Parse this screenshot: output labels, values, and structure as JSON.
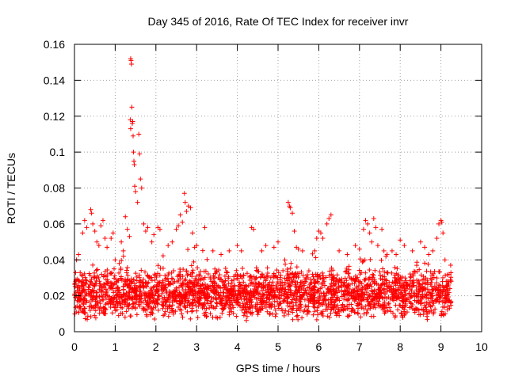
{
  "chart_data": {
    "type": "scatter",
    "title": "Day 345 of 2016, Rate Of TEC Index for receiver invr",
    "xlabel": "GPS time / hours",
    "ylabel": "ROTI / TECUs",
    "xlim": [
      0,
      10
    ],
    "ylim": [
      0,
      0.16
    ],
    "xticks": [
      "0",
      "1",
      "2",
      "3",
      "4",
      "5",
      "6",
      "7",
      "8",
      "9",
      "10"
    ],
    "yticks": [
      "0",
      "0.02",
      "0.04",
      "0.06",
      "0.08",
      "0.1",
      "0.12",
      "0.14",
      "0.16"
    ],
    "grid": true,
    "marker": "+",
    "series": [
      {
        "name": "ROTI",
        "color": "#ff0000",
        "x_range": [
          0,
          9.25
        ],
        "points": [
          [
            0.05,
            0.04
          ],
          [
            0.1,
            0.043
          ],
          [
            0.2,
            0.055
          ],
          [
            0.25,
            0.062
          ],
          [
            0.3,
            0.058
          ],
          [
            0.4,
            0.068
          ],
          [
            0.42,
            0.066
          ],
          [
            0.45,
            0.06
          ],
          [
            0.5,
            0.056
          ],
          [
            0.55,
            0.05
          ],
          [
            0.6,
            0.048
          ],
          [
            0.65,
            0.059
          ],
          [
            0.7,
            0.062
          ],
          [
            0.75,
            0.052
          ],
          [
            0.8,
            0.047
          ],
          [
            0.9,
            0.052
          ],
          [
            0.95,
            0.055
          ],
          [
            1.0,
            0.04
          ],
          [
            1.1,
            0.038
          ],
          [
            1.15,
            0.05
          ],
          [
            1.2,
            0.045
          ],
          [
            1.25,
            0.064
          ],
          [
            1.3,
            0.057
          ],
          [
            1.35,
            0.053
          ],
          [
            1.38,
            0.152
          ],
          [
            1.39,
            0.151
          ],
          [
            1.4,
            0.149
          ],
          [
            1.41,
            0.125
          ],
          [
            1.37,
            0.118
          ],
          [
            1.38,
            0.113
          ],
          [
            1.42,
            0.116
          ],
          [
            1.43,
            0.117
          ],
          [
            1.44,
            0.109
          ],
          [
            1.45,
            0.1
          ],
          [
            1.46,
            0.095
          ],
          [
            1.47,
            0.093
          ],
          [
            1.48,
            0.081
          ],
          [
            1.5,
            0.078
          ],
          [
            1.55,
            0.072
          ],
          [
            1.58,
            0.11
          ],
          [
            1.6,
            0.099
          ],
          [
            1.62,
            0.085
          ],
          [
            1.65,
            0.08
          ],
          [
            1.7,
            0.06
          ],
          [
            1.75,
            0.056
          ],
          [
            1.8,
            0.058
          ],
          [
            1.9,
            0.05
          ],
          [
            1.95,
            0.054
          ],
          [
            2.05,
            0.058
          ],
          [
            2.1,
            0.057
          ],
          [
            2.3,
            0.048
          ],
          [
            2.4,
            0.05
          ],
          [
            2.5,
            0.057
          ],
          [
            2.55,
            0.059
          ],
          [
            2.6,
            0.065
          ],
          [
            2.65,
            0.061
          ],
          [
            2.7,
            0.077
          ],
          [
            2.72,
            0.072
          ],
          [
            2.75,
            0.067
          ],
          [
            2.8,
            0.07
          ],
          [
            2.85,
            0.069
          ],
          [
            2.9,
            0.055
          ],
          [
            2.95,
            0.047
          ],
          [
            3.0,
            0.048
          ],
          [
            3.2,
            0.058
          ],
          [
            3.4,
            0.045
          ],
          [
            3.6,
            0.043
          ],
          [
            3.8,
            0.045
          ],
          [
            4.0,
            0.048
          ],
          [
            4.1,
            0.045
          ],
          [
            4.35,
            0.058
          ],
          [
            4.4,
            0.057
          ],
          [
            4.6,
            0.045
          ],
          [
            4.7,
            0.048
          ],
          [
            4.9,
            0.047
          ],
          [
            5.0,
            0.05
          ],
          [
            5.25,
            0.072
          ],
          [
            5.28,
            0.07
          ],
          [
            5.3,
            0.069
          ],
          [
            5.35,
            0.066
          ],
          [
            5.4,
            0.056
          ],
          [
            5.45,
            0.047
          ],
          [
            5.5,
            0.046
          ],
          [
            5.6,
            0.045
          ],
          [
            5.9,
            0.045
          ],
          [
            5.95,
            0.052
          ],
          [
            6.0,
            0.056
          ],
          [
            6.05,
            0.055
          ],
          [
            6.1,
            0.052
          ],
          [
            6.2,
            0.06
          ],
          [
            6.25,
            0.063
          ],
          [
            6.3,
            0.065
          ],
          [
            6.5,
            0.045
          ],
          [
            6.7,
            0.043
          ],
          [
            6.9,
            0.048
          ],
          [
            7.0,
            0.046
          ],
          [
            7.1,
            0.057
          ],
          [
            7.15,
            0.062
          ],
          [
            7.2,
            0.06
          ],
          [
            7.25,
            0.055
          ],
          [
            7.3,
            0.05
          ],
          [
            7.35,
            0.063
          ],
          [
            7.4,
            0.058
          ],
          [
            7.45,
            0.048
          ],
          [
            7.55,
            0.057
          ],
          [
            7.6,
            0.045
          ],
          [
            7.8,
            0.045
          ],
          [
            7.9,
            0.043
          ],
          [
            8.0,
            0.051
          ],
          [
            8.1,
            0.048
          ],
          [
            8.3,
            0.045
          ],
          [
            8.5,
            0.05
          ],
          [
            8.6,
            0.047
          ],
          [
            8.7,
            0.043
          ],
          [
            8.8,
            0.045
          ],
          [
            8.9,
            0.052
          ],
          [
            8.95,
            0.06
          ],
          [
            9.0,
            0.062
          ],
          [
            9.02,
            0.061
          ],
          [
            9.05,
            0.055
          ],
          [
            9.1,
            0.04
          ],
          [
            9.2,
            0.032
          ]
        ]
      }
    ]
  }
}
